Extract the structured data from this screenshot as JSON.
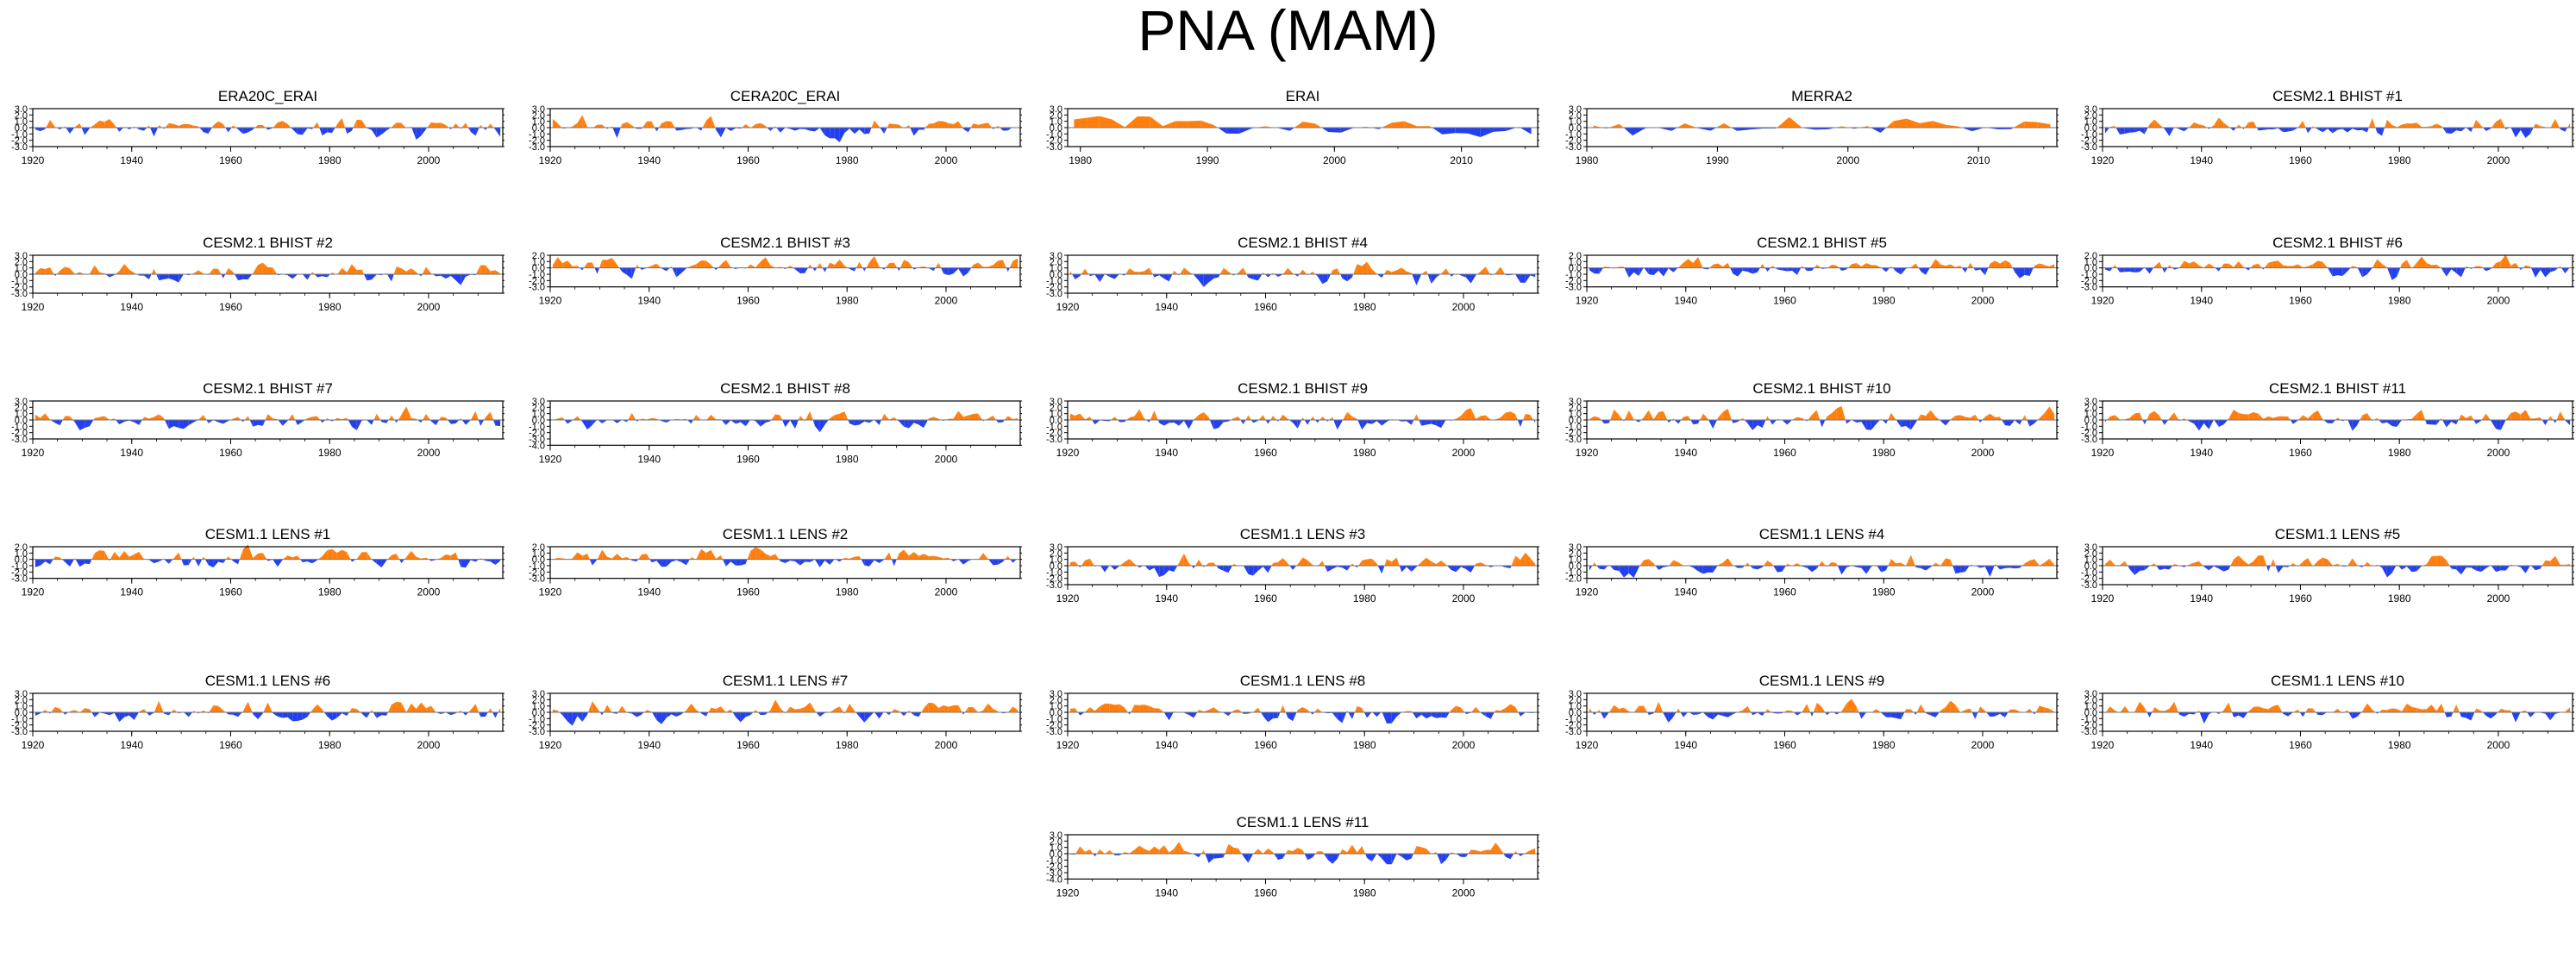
{
  "title": "PNA (MAM)",
  "colors": {
    "positive": "#FF7F0E",
    "negative": "#2340F0",
    "axis": "#000000",
    "zero_line": "#777777"
  },
  "chart_data": [
    {
      "type": "area",
      "title": "ERA20C_ERAI",
      "x_range": [
        1920,
        2014
      ],
      "ylim": [
        -3.0,
        3.0
      ],
      "yticks": [
        "3.0",
        "2.0",
        "1.0",
        "0.0",
        "-1.0",
        "-2.0",
        "-3.0"
      ],
      "xticks": [
        "1920",
        "1940",
        "1960",
        "1980",
        "2000"
      ],
      "seed": 11,
      "amp": 0.9
    },
    {
      "type": "area",
      "title": "CERA20C_ERAI",
      "x_range": [
        1920,
        2014
      ],
      "ylim": [
        -3.0,
        3.0
      ],
      "yticks": [
        "3.0",
        "2.0",
        "1.0",
        "0.0",
        "-1.0",
        "-2.0",
        "-3.0"
      ],
      "xticks": [
        "1920",
        "1940",
        "1960",
        "1980",
        "2000"
      ],
      "seed": 23,
      "amp": 0.9
    },
    {
      "type": "area",
      "title": "ERAI",
      "x_range": [
        1979,
        2015
      ],
      "ylim": [
        -3.0,
        3.0
      ],
      "yticks": [
        "3.0",
        "2.0",
        "1.0",
        "0.0",
        "-1.0",
        "-2.0",
        "-3.0"
      ],
      "xticks": [
        "1980",
        "1990",
        "2000",
        "2010"
      ],
      "seed": 37,
      "amp": 1.0
    },
    {
      "type": "area",
      "title": "MERRA2",
      "x_range": [
        1980,
        2015
      ],
      "ylim": [
        -3.0,
        3.0
      ],
      "yticks": [
        "3.0",
        "2.0",
        "1.0",
        "0.0",
        "-1.0",
        "-2.0",
        "-3.0"
      ],
      "xticks": [
        "1980",
        "1990",
        "2000",
        "2010"
      ],
      "seed": 41,
      "amp": 1.0
    },
    {
      "type": "area",
      "title": "CESM2.1 BHIST #1",
      "x_range": [
        1920,
        2014
      ],
      "ylim": [
        -3.0,
        3.0
      ],
      "yticks": [
        "3.0",
        "2.0",
        "1.0",
        "0.0",
        "-1.0",
        "-2.0",
        "-3.0"
      ],
      "xticks": [
        "1920",
        "1940",
        "1960",
        "1980",
        "2000"
      ],
      "seed": 53,
      "amp": 0.9
    },
    {
      "type": "area",
      "title": "CESM2.1 BHIST #2",
      "x_range": [
        1920,
        2014
      ],
      "ylim": [
        -3.0,
        3.0
      ],
      "yticks": [
        "3.0",
        "2.0",
        "1.0",
        "0.0",
        "-1.0",
        "-2.0",
        "-3.0"
      ],
      "xticks": [
        "1920",
        "1940",
        "1960",
        "1980",
        "2000"
      ],
      "seed": 61,
      "amp": 0.9
    },
    {
      "type": "area",
      "title": "CESM2.1 BHIST #3",
      "x_range": [
        1920,
        2014
      ],
      "ylim": [
        -3.0,
        2.0
      ],
      "yticks": [
        "2.0",
        "1.0",
        "0.0",
        "-1.0",
        "-2.0",
        "-3.0"
      ],
      "xticks": [
        "1920",
        "1940",
        "1960",
        "1980",
        "2000"
      ],
      "seed": 73,
      "amp": 0.9
    },
    {
      "type": "area",
      "title": "CESM2.1 BHIST #4",
      "x_range": [
        1920,
        2014
      ],
      "ylim": [
        -3.0,
        3.0
      ],
      "yticks": [
        "3.0",
        "2.0",
        "1.0",
        "0.0",
        "-1.0",
        "-2.0",
        "-3.0"
      ],
      "xticks": [
        "1920",
        "1940",
        "1960",
        "1980",
        "2000"
      ],
      "seed": 79,
      "amp": 0.9
    },
    {
      "type": "area",
      "title": "CESM2.1 BHIST #5",
      "x_range": [
        1920,
        2014
      ],
      "ylim": [
        -3.0,
        2.0
      ],
      "yticks": [
        "2.0",
        "1.0",
        "0.0",
        "-1.0",
        "-2.0",
        "-3.0"
      ],
      "xticks": [
        "1920",
        "1940",
        "1960",
        "1980",
        "2000"
      ],
      "seed": 83,
      "amp": 0.9
    },
    {
      "type": "area",
      "title": "CESM2.1 BHIST #6",
      "x_range": [
        1920,
        2014
      ],
      "ylim": [
        -3.0,
        2.0
      ],
      "yticks": [
        "2.0",
        "1.0",
        "0.0",
        "-1.0",
        "-2.0",
        "-3.0"
      ],
      "xticks": [
        "1920",
        "1940",
        "1960",
        "1980",
        "2000"
      ],
      "seed": 89,
      "amp": 0.9
    },
    {
      "type": "area",
      "title": "CESM2.1 BHIST #7",
      "x_range": [
        1920,
        2014
      ],
      "ylim": [
        -3.0,
        3.0
      ],
      "yticks": [
        "3.0",
        "2.0",
        "1.0",
        "0.0",
        "-1.0",
        "-2.0",
        "-3.0"
      ],
      "xticks": [
        "1920",
        "1940",
        "1960",
        "1980",
        "2000"
      ],
      "seed": 97,
      "amp": 0.9
    },
    {
      "type": "area",
      "title": "CESM2.1 BHIST #8",
      "x_range": [
        1920,
        2014
      ],
      "ylim": [
        -4.0,
        3.0
      ],
      "yticks": [
        "3.0",
        "2.0",
        "1.0",
        "0.0",
        "-1.0",
        "-2.0",
        "-3.0",
        "-4.0"
      ],
      "xticks": [
        "1920",
        "1940",
        "1960",
        "1980",
        "2000"
      ],
      "seed": 101,
      "amp": 0.9
    },
    {
      "type": "area",
      "title": "CESM2.1 BHIST #9",
      "x_range": [
        1920,
        2014
      ],
      "ylim": [
        -3.0,
        3.0
      ],
      "yticks": [
        "3.0",
        "2.0",
        "1.0",
        "0.0",
        "-1.0",
        "-2.0",
        "-3.0"
      ],
      "xticks": [
        "1920",
        "1940",
        "1960",
        "1980",
        "2000"
      ],
      "seed": 103,
      "amp": 0.9
    },
    {
      "type": "area",
      "title": "CESM2.1 BHIST #10",
      "x_range": [
        1920,
        2014
      ],
      "ylim": [
        -3.0,
        3.0
      ],
      "yticks": [
        "3.0",
        "2.0",
        "1.0",
        "0.0",
        "-1.0",
        "-2.0",
        "-3.0"
      ],
      "xticks": [
        "1920",
        "1940",
        "1960",
        "1980",
        "2000"
      ],
      "seed": 107,
      "amp": 0.9
    },
    {
      "type": "area",
      "title": "CESM2.1 BHIST #11",
      "x_range": [
        1920,
        2014
      ],
      "ylim": [
        -3.0,
        3.0
      ],
      "yticks": [
        "3.0",
        "2.0",
        "1.0",
        "0.0",
        "-1.0",
        "-2.0",
        "-3.0"
      ],
      "xticks": [
        "1920",
        "1940",
        "1960",
        "1980",
        "2000"
      ],
      "seed": 109,
      "amp": 0.9
    },
    {
      "type": "area",
      "title": "CESM1.1 LENS #1",
      "x_range": [
        1920,
        2014
      ],
      "ylim": [
        -3.0,
        2.0
      ],
      "yticks": [
        "2.0",
        "1.0",
        "0.0",
        "-1.0",
        "-2.0",
        "-3.0"
      ],
      "xticks": [
        "1920",
        "1940",
        "1960",
        "1980",
        "2000"
      ],
      "seed": 113,
      "amp": 0.9
    },
    {
      "type": "area",
      "title": "CESM1.1 LENS #2",
      "x_range": [
        1920,
        2014
      ],
      "ylim": [
        -3.0,
        2.0
      ],
      "yticks": [
        "2.0",
        "1.0",
        "0.0",
        "-1.0",
        "-2.0",
        "-3.0"
      ],
      "xticks": [
        "1920",
        "1940",
        "1960",
        "1980",
        "2000"
      ],
      "seed": 127,
      "amp": 0.9
    },
    {
      "type": "area",
      "title": "CESM1.1 LENS #3",
      "x_range": [
        1920,
        2014
      ],
      "ylim": [
        -3.0,
        3.0
      ],
      "yticks": [
        "3.0",
        "2.0",
        "1.0",
        "0.0",
        "-1.0",
        "-2.0",
        "-3.0"
      ],
      "xticks": [
        "1920",
        "1940",
        "1960",
        "1980",
        "2000"
      ],
      "seed": 131,
      "amp": 0.9
    },
    {
      "type": "area",
      "title": "CESM1.1 LENS #4",
      "x_range": [
        1920,
        2014
      ],
      "ylim": [
        -2.0,
        3.0
      ],
      "yticks": [
        "3.0",
        "2.0",
        "1.0",
        "0.0",
        "-1.0",
        "-2.0"
      ],
      "xticks": [
        "1920",
        "1940",
        "1960",
        "1980",
        "2000"
      ],
      "seed": 137,
      "amp": 0.9
    },
    {
      "type": "area",
      "title": "CESM1.1 LENS #5",
      "x_range": [
        1920,
        2014
      ],
      "ylim": [
        -3.0,
        3.0
      ],
      "yticks": [
        "3.0",
        "2.0",
        "1.0",
        "0.0",
        "-1.0",
        "-2.0",
        "-3.0"
      ],
      "xticks": [
        "1920",
        "1940",
        "1960",
        "1980",
        "2000"
      ],
      "seed": 139,
      "amp": 0.9
    },
    {
      "type": "area",
      "title": "CESM1.1 LENS #6",
      "x_range": [
        1920,
        2014
      ],
      "ylim": [
        -3.0,
        3.0
      ],
      "yticks": [
        "3.0",
        "2.0",
        "1.0",
        "0.0",
        "-1.0",
        "-2.0",
        "-3.0"
      ],
      "xticks": [
        "1920",
        "1940",
        "1960",
        "1980",
        "2000"
      ],
      "seed": 149,
      "amp": 0.9
    },
    {
      "type": "area",
      "title": "CESM1.1 LENS #7",
      "x_range": [
        1920,
        2014
      ],
      "ylim": [
        -3.0,
        3.0
      ],
      "yticks": [
        "3.0",
        "2.0",
        "1.0",
        "0.0",
        "-1.0",
        "-2.0",
        "-3.0"
      ],
      "xticks": [
        "1920",
        "1940",
        "1960",
        "1980",
        "2000"
      ],
      "seed": 151,
      "amp": 0.9
    },
    {
      "type": "area",
      "title": "CESM1.1 LENS #8",
      "x_range": [
        1920,
        2014
      ],
      "ylim": [
        -3.0,
        3.0
      ],
      "yticks": [
        "3.0",
        "2.0",
        "1.0",
        "0.0",
        "-1.0",
        "-2.0",
        "-3.0"
      ],
      "xticks": [
        "1920",
        "1940",
        "1960",
        "1980",
        "2000"
      ],
      "seed": 157,
      "amp": 0.9
    },
    {
      "type": "area",
      "title": "CESM1.1 LENS #9",
      "x_range": [
        1920,
        2014
      ],
      "ylim": [
        -3.0,
        3.0
      ],
      "yticks": [
        "3.0",
        "2.0",
        "1.0",
        "0.0",
        "-1.0",
        "-2.0",
        "-3.0"
      ],
      "xticks": [
        "1920",
        "1940",
        "1960",
        "1980",
        "2000"
      ],
      "seed": 163,
      "amp": 0.9
    },
    {
      "type": "area",
      "title": "CESM1.1 LENS #10",
      "x_range": [
        1920,
        2014
      ],
      "ylim": [
        -3.0,
        3.0
      ],
      "yticks": [
        "3.0",
        "2.0",
        "1.0",
        "0.0",
        "-1.0",
        "-2.0",
        "-3.0"
      ],
      "xticks": [
        "1920",
        "1940",
        "1960",
        "1980",
        "2000"
      ],
      "seed": 167,
      "amp": 0.9
    },
    {
      "type": "area",
      "title": "CESM1.1 LENS #11",
      "x_range": [
        1920,
        2014
      ],
      "ylim": [
        -4.0,
        3.0
      ],
      "yticks": [
        "3.0",
        "2.0",
        "1.0",
        "0.0",
        "-1.0",
        "-2.0",
        "-3.0",
        "-4.0"
      ],
      "xticks": [
        "1920",
        "1940",
        "1960",
        "1980",
        "2000"
      ],
      "seed": 173,
      "amp": 0.9
    }
  ]
}
